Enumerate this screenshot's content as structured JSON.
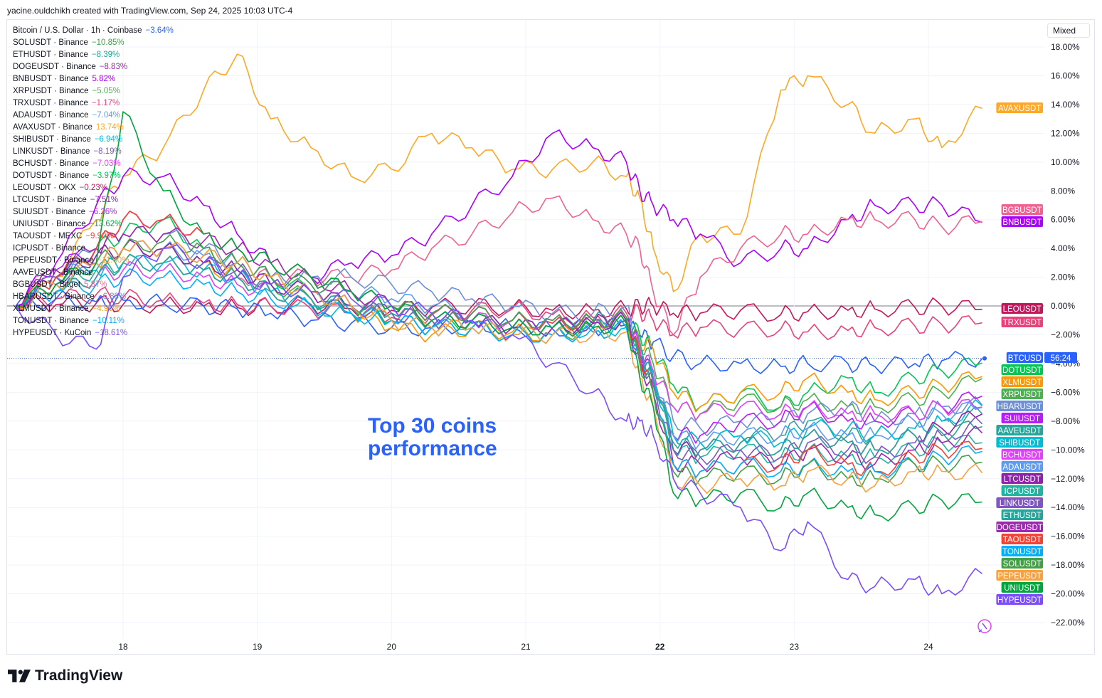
{
  "header": {
    "credit": "yacine.ouldchikh created with TradingView.com, Sep 24, 2025 10:03 UTC-4"
  },
  "toolbar": {
    "scale_mode": "Mixed"
  },
  "annotation": {
    "line1": "Top 30 coins",
    "line2": "performance"
  },
  "brand": {
    "name": "TradingView"
  },
  "colors": {
    "accent": "#2962ff",
    "grid": "#f0f3fa",
    "zero_line": "#787b86"
  },
  "legend": [
    {
      "name": "Bitcoin / U.S. Dollar · 1h · Coinbase",
      "value": "−3.64%",
      "color": "#2962ff"
    },
    {
      "name": "SOLUSDT · Binance",
      "value": "−10.85%",
      "color": "#43a047"
    },
    {
      "name": "ETHUSDT · Binance",
      "value": "−8.39%",
      "color": "#26a69a"
    },
    {
      "name": "DOGEUSDT · Binance",
      "value": "−8.83%",
      "color": "#9c27b0"
    },
    {
      "name": "BNBUSDT · Binance",
      "value": "5.82%",
      "color": "#aa00ff"
    },
    {
      "name": "XRPUSDT · Binance",
      "value": "−5.05%",
      "color": "#4caf50"
    },
    {
      "name": "TRXUSDT · Binance",
      "value": "−1.17%",
      "color": "#ec407a"
    },
    {
      "name": "ADAUSDT · Binance",
      "value": "−7.04%",
      "color": "#5c9cf5"
    },
    {
      "name": "AVAXUSDT · Binance",
      "value": "13.74%",
      "color": "#ffa726"
    },
    {
      "name": "SHIBUSDT · Binance",
      "value": "−6.94%",
      "color": "#00bcd4"
    },
    {
      "name": "LINKUSDT · Binance",
      "value": "−8.19%",
      "color": "#7e57c2"
    },
    {
      "name": "BCHUSDT · Binance",
      "value": "−7.03%",
      "color": "#e040fb"
    },
    {
      "name": "DOTUSDT · Binance",
      "value": "−3.97%",
      "color": "#00c853"
    },
    {
      "name": "LEOUSDT · OKX",
      "value": "−0.23%",
      "color": "#c2185b"
    },
    {
      "name": "LTCUSDT · Binance",
      "value": "−7.51%",
      "color": "#8e24aa"
    },
    {
      "name": "SUIUSDT · Binance",
      "value": "−6.26%",
      "color": "#b71cff"
    },
    {
      "name": "UNIUSDT · Binance",
      "value": "−13.62%",
      "color": "#00a63e"
    },
    {
      "name": "TAOUSDT · MEXC",
      "value": "−9.90%",
      "color": "#f44336"
    },
    {
      "name": "ICPUSDT · Binance",
      "value": "",
      "color": "#1fb5a0"
    },
    {
      "name": "PEPEUSDT · Binance",
      "value": "−11.60%",
      "color": "#f9a03f"
    },
    {
      "name": "AAVEUSDT · Binance",
      "value": "",
      "color": "#26a69a"
    },
    {
      "name": "BGBUSDT · Bitget",
      "value": "5.87%",
      "color": "#f06292"
    },
    {
      "name": "HBARUSDT · Binance",
      "value": "−6.88%",
      "color": "#6d8fd8"
    },
    {
      "name": "XLMUSDT · Binance",
      "value": "−4.90%",
      "color": "#ff9800"
    },
    {
      "name": "TONUSDT · Binance",
      "value": "−10.11%",
      "color": "#00b0ff"
    },
    {
      "name": "HYPEUSDT · KuCoin",
      "value": "−18.61%",
      "color": "#7c4dff"
    }
  ],
  "chart_data": {
    "type": "line",
    "title": "",
    "xlabel": "",
    "ylabel": "",
    "y_unit": "%",
    "ylim": [
      -23,
      19
    ],
    "y_ticks": [
      "18.00%",
      "16.00%",
      "14.00%",
      "12.00%",
      "10.00%",
      "8.00%",
      "6.00%",
      "4.00%",
      "2.00%",
      "0.00%",
      "−2.00%",
      "−4.00%",
      "−6.00%",
      "−8.00%",
      "−10.00%",
      "−12.00%",
      "−14.00%",
      "−16.00%",
      "−18.00%",
      "−20.00%",
      "−22.00%"
    ],
    "x_ticks": [
      "18",
      "19",
      "20",
      "21",
      "22",
      "23",
      "24"
    ],
    "x_tick_bold": "22",
    "x_range": [
      17.15,
      24.6
    ],
    "grid": true,
    "legend": "top-left",
    "x": [
      17.2,
      17.5,
      17.8,
      18.0,
      18.3,
      18.6,
      18.85,
      19.1,
      19.4,
      19.7,
      20.0,
      20.3,
      20.6,
      20.9,
      21.2,
      21.5,
      21.75,
      21.85,
      21.95,
      22.1,
      22.3,
      22.6,
      22.9,
      23.1,
      23.4,
      23.6,
      23.9,
      24.1,
      24.4
    ],
    "series": [
      {
        "name": "AVAXUSDT",
        "color": "#ffa726",
        "values": [
          0,
          2,
          6,
          9,
          11,
          15,
          17.5,
          13,
          11,
          9,
          9.5,
          12,
          11,
          9.5,
          9.5,
          10,
          9,
          7.5,
          4,
          1,
          5,
          5,
          15,
          16,
          14,
          12,
          13,
          11,
          13.74
        ]
      },
      {
        "name": "BNBUSDT",
        "color": "#aa00ff",
        "values": [
          0,
          3,
          7,
          9,
          9,
          7,
          5,
          3,
          2,
          3,
          3.5,
          5,
          7,
          9,
          12,
          11,
          10,
          8,
          7,
          6,
          5,
          3,
          4,
          4,
          6,
          7,
          7,
          7,
          5.82
        ]
      },
      {
        "name": "BGBUSDT",
        "color": "#f06292",
        "values": [
          0,
          1,
          2,
          3,
          3,
          2.5,
          2,
          2,
          2,
          2,
          2.5,
          4,
          5,
          6.5,
          7.5,
          6,
          5,
          4,
          1,
          -2,
          2,
          4,
          5,
          5,
          6,
          6,
          6,
          5.5,
          5.87
        ]
      },
      {
        "name": "LEOUSDT",
        "color": "#c2185b",
        "values": [
          0,
          0.1,
          0.2,
          0.1,
          0.1,
          0,
          -0.1,
          0,
          0.1,
          -0.2,
          -0.3,
          -0.1,
          0,
          -0.1,
          -0.3,
          -0.3,
          -0.2,
          0,
          0,
          -0.5,
          -0.5,
          -0.3,
          -0.6,
          -0.4,
          -0.3,
          -0.2,
          -0.1,
          0,
          -0.23
        ]
      },
      {
        "name": "TRXUSDT",
        "color": "#ec407a",
        "values": [
          0,
          0.5,
          0.8,
          0.6,
          0.4,
          0.2,
          0.1,
          0,
          -0.2,
          -0.5,
          -0.8,
          -0.6,
          -0.3,
          -0.2,
          -0.6,
          -0.8,
          -0.5,
          -0.4,
          -1,
          -2,
          -1.5,
          -1.6,
          -1.6,
          -1.8,
          -1.7,
          -1.5,
          -1.4,
          -1.3,
          -1.17
        ]
      },
      {
        "name": "BTCUSD",
        "color": "#2962ff",
        "values": [
          0,
          0.5,
          0.3,
          0.4,
          0.2,
          0,
          -0.2,
          -0.5,
          -1,
          -1.2,
          -1.5,
          -1.5,
          -1.2,
          -1.5,
          -1.6,
          -1.5,
          -1.3,
          -2,
          -2.5,
          -3.5,
          -4,
          -4,
          -4.2,
          -4,
          -4,
          -4.2,
          -4,
          -3.8,
          -3.64
        ]
      },
      {
        "name": "DOTUSDT",
        "color": "#00c853",
        "values": [
          0,
          2,
          4,
          5,
          6,
          4,
          3,
          2,
          1,
          0,
          -1,
          -1.5,
          -1,
          -1.5,
          -1.5,
          -1.2,
          -1,
          -2,
          -3,
          -5.5,
          -7,
          -6,
          -7,
          -6,
          -5,
          -6,
          -5,
          -4.5,
          -3.97
        ]
      },
      {
        "name": "XLMUSDT",
        "color": "#ff9800",
        "values": [
          0,
          1.5,
          3,
          4,
          4,
          3,
          2,
          1,
          0.5,
          -0.5,
          -1.5,
          -2,
          -1.5,
          -1.8,
          -2,
          -1.5,
          -1.2,
          -2.5,
          -3,
          -6,
          -7,
          -6,
          -6,
          -5,
          -6,
          -6.5,
          -6,
          -5.5,
          -4.9
        ]
      },
      {
        "name": "XRPUSDT",
        "color": "#4caf50",
        "values": [
          0,
          2,
          3.5,
          4,
          4,
          3,
          2.5,
          1.5,
          0.5,
          -0.5,
          -1,
          -1.5,
          -1.5,
          -2,
          -2,
          -1.5,
          -1.2,
          -2.5,
          -4,
          -7,
          -7.5,
          -6.5,
          -7,
          -6.5,
          -7,
          -7,
          -6.5,
          -6,
          -5.05
        ]
      },
      {
        "name": "HBARUSDT",
        "color": "#6d8fd8",
        "values": [
          0,
          2,
          4,
          5,
          5,
          4,
          3,
          2,
          2,
          2,
          1.5,
          1,
          0.5,
          0,
          -0.5,
          -0.5,
          0,
          -3,
          -5,
          -8,
          -8.5,
          -8,
          -8,
          -7.5,
          -7,
          -8,
          -7.5,
          -7,
          -6.88
        ]
      },
      {
        "name": "SUIUSDT",
        "color": "#b71cff",
        "values": [
          0,
          2.5,
          4,
          6,
          6,
          5,
          4,
          3,
          2,
          1,
          0,
          -0.5,
          -0.5,
          -1,
          -1,
          -1,
          -0.8,
          -3,
          -5,
          -9,
          -9,
          -8,
          -8,
          -7,
          -8,
          -8,
          -7.5,
          -7,
          -6.26
        ]
      },
      {
        "name": "AAVEUSDT",
        "color": "#26a69a",
        "values": [
          0,
          2,
          3,
          4,
          4,
          3.5,
          3,
          2,
          1,
          0,
          -0.5,
          -1,
          -1,
          -1.5,
          -1.5,
          -1,
          -1,
          -3,
          -5,
          -9,
          -9.5,
          -9,
          -9,
          -8,
          -9,
          -9,
          -8.5,
          -8,
          -7.5
        ]
      },
      {
        "name": "SHIBUSDT",
        "color": "#00bcd4",
        "values": [
          0,
          1.5,
          2.5,
          3,
          3,
          2.5,
          2,
          1,
          0,
          -0.5,
          -1,
          -1.5,
          -1.5,
          -2,
          -2,
          -1.5,
          -1.5,
          -3.5,
          -5,
          -9,
          -9.5,
          -9,
          -9.5,
          -8.5,
          -8.5,
          -9,
          -8.5,
          -8,
          -6.94
        ]
      },
      {
        "name": "BCHUSDT",
        "color": "#e040fb",
        "values": [
          0,
          1,
          2,
          2.5,
          2.5,
          2,
          1.5,
          1,
          0.5,
          0,
          -0.5,
          -1,
          -1,
          -1,
          -1.2,
          -1,
          -1,
          -3,
          -4.5,
          -7,
          -7.5,
          -7,
          -7.5,
          -7,
          -7.5,
          -7.5,
          -7.5,
          -7,
          -7.03
        ]
      },
      {
        "name": "ADAUSDT",
        "color": "#5c9cf5",
        "values": [
          0,
          2,
          3,
          4,
          4,
          3.5,
          3,
          2,
          1.5,
          1,
          0.5,
          0,
          -0.5,
          -1,
          -1.2,
          -1,
          -0.8,
          -3.5,
          -5,
          -9,
          -9.5,
          -9,
          -9,
          -8.5,
          -9,
          -9,
          -8,
          -7.5,
          -7.04
        ]
      },
      {
        "name": "LTCUSDT",
        "color": "#8e24aa",
        "values": [
          0,
          2,
          3.5,
          4,
          4,
          3,
          2.5,
          1.5,
          1,
          0,
          -0.5,
          -1,
          -1,
          -1.5,
          -1.5,
          -1.2,
          -1,
          -3.5,
          -5,
          -10,
          -10,
          -9.5,
          -10,
          -9,
          -9.5,
          -10,
          -9,
          -8.5,
          -7.51
        ]
      },
      {
        "name": "ICPUSDT",
        "color": "#1fb5a0",
        "values": [
          0,
          1.5,
          2.5,
          3,
          3,
          2.5,
          2,
          1,
          0.5,
          -0.5,
          -1,
          -1.5,
          -1.5,
          -2,
          -2,
          -1.8,
          -1.5,
          -3.5,
          -5,
          -10,
          -10.5,
          -10,
          -10.5,
          -10,
          -10.5,
          -10.5,
          -10,
          -9.5,
          -9.5
        ]
      },
      {
        "name": "LINKUSDT",
        "color": "#7e57c2",
        "values": [
          0,
          2,
          3,
          4,
          4,
          3,
          2.5,
          1.5,
          1,
          0,
          -0.5,
          -1,
          -1,
          -1.5,
          -1.5,
          -1.2,
          -1,
          -3.5,
          -5.5,
          -10,
          -10.5,
          -10,
          -10.5,
          -9.5,
          -10,
          -10.5,
          -9.5,
          -9,
          -8.19
        ]
      },
      {
        "name": "ETHUSDT",
        "color": "#26a69a",
        "values": [
          0,
          1,
          2,
          3,
          3,
          2.5,
          2,
          1,
          0.5,
          0,
          -0.5,
          -1,
          -1,
          -1.5,
          -1.5,
          -1.5,
          -1.2,
          -3.5,
          -5,
          -9.5,
          -10,
          -9.5,
          -10,
          -9,
          -9.5,
          -10,
          -9,
          -8.8,
          -8.39
        ]
      },
      {
        "name": "DOGEUSDT",
        "color": "#9c27b0",
        "values": [
          0,
          2.5,
          4,
          5,
          5,
          4.5,
          4,
          3,
          2,
          1,
          0,
          -0.5,
          -1,
          -1.5,
          -1.5,
          -1.2,
          -1,
          -4,
          -6,
          -11,
          -11,
          -10.5,
          -11,
          -10,
          -10.5,
          -11,
          -10,
          -9.5,
          -8.83
        ]
      },
      {
        "name": "TAOUSDT",
        "color": "#f44336",
        "values": [
          0,
          2,
          4,
          6,
          6,
          5,
          4,
          3,
          2,
          1,
          0,
          -0.5,
          -0.5,
          -1,
          -1.2,
          -1,
          -0.8,
          -3.5,
          -6,
          -11,
          -11.5,
          -11,
          -11,
          -10,
          -11,
          -11.5,
          -10.5,
          -10,
          -9.9
        ]
      },
      {
        "name": "TONUSDT",
        "color": "#00b0ff",
        "values": [
          0,
          1,
          1.5,
          2,
          2,
          1.5,
          1,
          0.5,
          0,
          -0.5,
          -1,
          -1.5,
          -1.5,
          -2,
          -2,
          -1.8,
          -1.5,
          -4,
          -6,
          -11,
          -11.5,
          -11,
          -11.5,
          -11,
          -11.5,
          -11.5,
          -11,
          -10.5,
          -10.11
        ]
      },
      {
        "name": "SOLUSDT",
        "color": "#43a047",
        "values": [
          0,
          1.5,
          3,
          4,
          4.5,
          4,
          3,
          2,
          1.5,
          1,
          0,
          -0.5,
          -0.5,
          -1,
          -1,
          -1,
          -0.8,
          -4,
          -6,
          -11.5,
          -12,
          -11.5,
          -12,
          -11,
          -12,
          -12,
          -11,
          -11,
          -10.85
        ]
      },
      {
        "name": "PEPEUSDT",
        "color": "#f9a03f",
        "values": [
          0,
          1.5,
          3,
          4,
          4,
          3.5,
          3,
          2,
          1,
          0,
          -1,
          -1.5,
          -1.5,
          -2,
          -2,
          -2,
          -1.8,
          -5,
          -7,
          -12,
          -12.5,
          -12,
          -12.5,
          -11.5,
          -12,
          -12.5,
          -11.5,
          -11.5,
          -11.6
        ]
      },
      {
        "name": "UNIUSDT",
        "color": "#00a63e",
        "values": [
          0,
          1.5,
          3,
          13.5,
          8,
          5,
          4,
          3,
          2,
          1,
          0,
          -1,
          -1,
          -1.5,
          -1.5,
          -1.5,
          -1.2,
          -5,
          -7,
          -13,
          -13.5,
          -13,
          -14,
          -13,
          -14,
          -14.5,
          -14,
          -13.5,
          -13.62
        ]
      },
      {
        "name": "HYPEUSDT",
        "color": "#7c4dff",
        "values": [
          0,
          -2,
          -3,
          2,
          4,
          3,
          2,
          1.5,
          1,
          0.5,
          0,
          -0.5,
          -1,
          -2,
          -4,
          -6,
          -8,
          -8,
          -9,
          -12,
          -13,
          -14,
          -17,
          -15,
          -19,
          -19.5,
          -19,
          -20,
          -18.61
        ]
      }
    ],
    "right_labels": [
      {
        "name": "AVAXUSDT",
        "color": "#ffa726"
      },
      {
        "name": "BGBUSDT",
        "color": "#f06292"
      },
      {
        "name": "BNBUSDT",
        "color": "#aa00ff"
      },
      {
        "name": "LEOUSDT",
        "color": "#c2185b"
      },
      {
        "name": "TRXUSDT",
        "color": "#ec407a"
      },
      {
        "name": "BTCUSD",
        "color": "#2962ff",
        "extra": "56:24"
      },
      {
        "name": "DOTUSDT",
        "color": "#00c853"
      },
      {
        "name": "XLMUSDT",
        "color": "#ff9800"
      },
      {
        "name": "XRPUSDT",
        "color": "#4caf50"
      },
      {
        "name": "HBARUSDT",
        "color": "#6d8fd8"
      },
      {
        "name": "SUIUSDT",
        "color": "#b71cff"
      },
      {
        "name": "AAVEUSDT",
        "color": "#26a69a"
      },
      {
        "name": "SHIBUSDT",
        "color": "#00bcd4"
      },
      {
        "name": "BCHUSDT",
        "color": "#e040fb"
      },
      {
        "name": "ADAUSDT",
        "color": "#5c9cf5"
      },
      {
        "name": "LTCUSDT",
        "color": "#8e24aa"
      },
      {
        "name": "ICPUSDT",
        "color": "#1fb5a0"
      },
      {
        "name": "LINKUSDT",
        "color": "#7e57c2"
      },
      {
        "name": "ETHUSDT",
        "color": "#26a69a"
      },
      {
        "name": "DOGEUSDT",
        "color": "#9c27b0"
      },
      {
        "name": "TAOUSDT",
        "color": "#f44336"
      },
      {
        "name": "TONUSDT",
        "color": "#00b0ff"
      },
      {
        "name": "SOLUSDT",
        "color": "#43a047"
      },
      {
        "name": "PEPEUSDT",
        "color": "#f9a03f"
      },
      {
        "name": "UNIUSDT",
        "color": "#00a63e"
      },
      {
        "name": "HYPEUSDT",
        "color": "#7c4dff"
      }
    ]
  }
}
